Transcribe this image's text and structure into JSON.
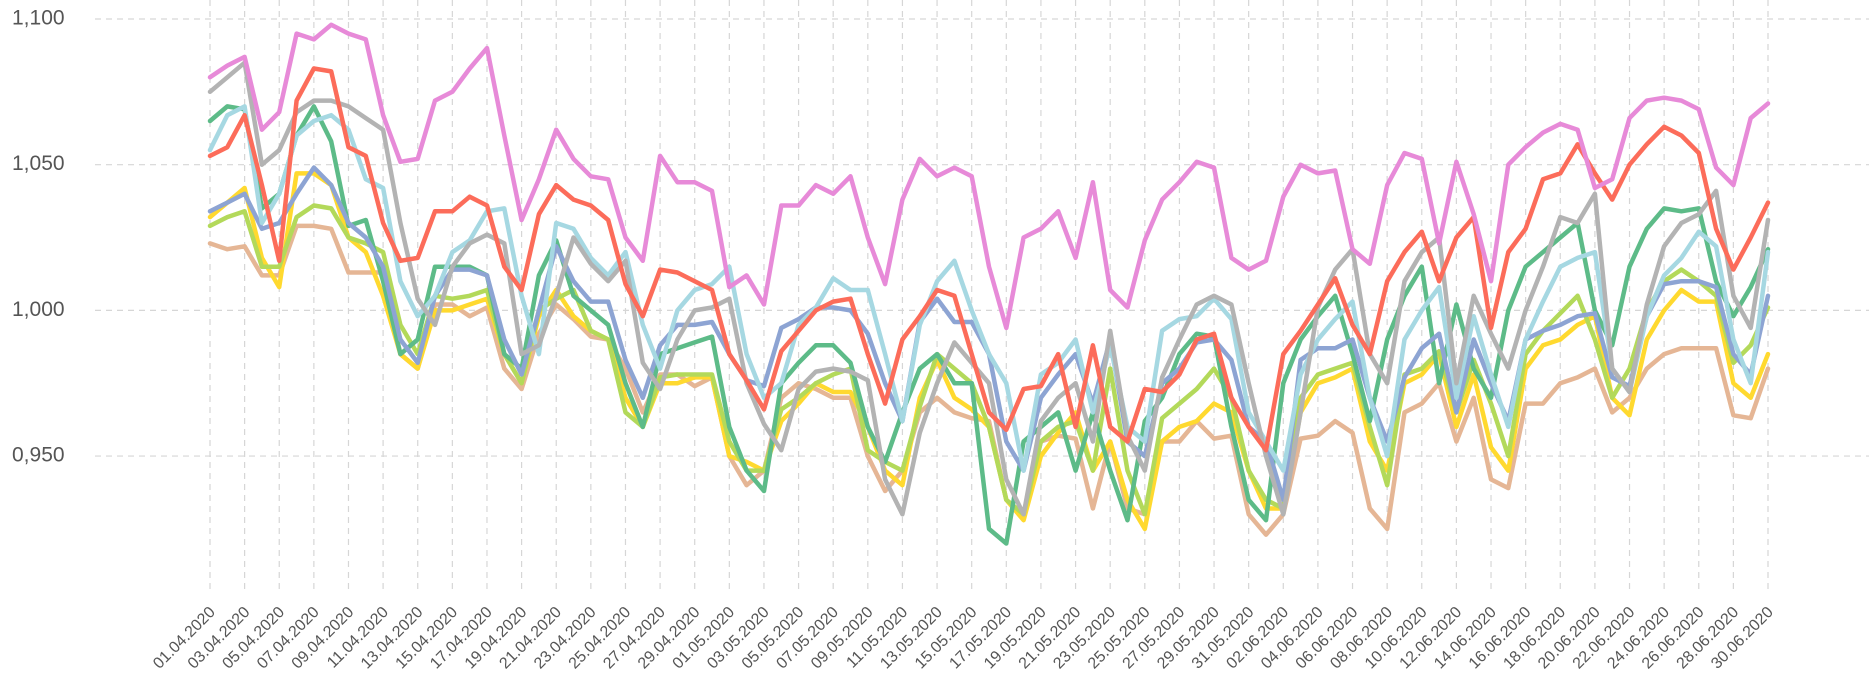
{
  "chart_data": {
    "type": "line",
    "categories": [
      "01.04.2020",
      null,
      "03.04.2020",
      null,
      "05.04.2020",
      null,
      "07.04.2020",
      null,
      "09.04.2020",
      null,
      "11.04.2020",
      null,
      "13.04.2020",
      null,
      "15.04.2020",
      null,
      "17.04.2020",
      null,
      "19.04.2020",
      null,
      "21.04.2020",
      null,
      "23.04.2020",
      null,
      "25.04.2020",
      null,
      "27.04.2020",
      null,
      "29.04.2020",
      null,
      "01.05.2020",
      null,
      "03.05.2020",
      null,
      "05.05.2020",
      null,
      "07.05.2020",
      null,
      "09.05.2020",
      null,
      "11.05.2020",
      null,
      "13.05.2020",
      null,
      "15.05.2020",
      null,
      "17.05.2020",
      null,
      "19.05.2020",
      null,
      "21.05.2020",
      null,
      "23.05.2020",
      null,
      "25.05.2020",
      null,
      "27.05.2020",
      null,
      "29.05.2020",
      null,
      "31.05.2020",
      null,
      "02.06.2020",
      null,
      "04.06.2020",
      null,
      "06.06.2020",
      null,
      "08.06.2020",
      null,
      "10.06.2020",
      null,
      "12.06.2020",
      null,
      "14.06.2020",
      null,
      "16.06.2020",
      null,
      "18.06.2020",
      null,
      "20.06.2020",
      null,
      "22.06.2020",
      null,
      "24.06.2020",
      null,
      "26.06.2020",
      null,
      "28.06.2020",
      null,
      "30.06.2020"
    ],
    "series": [
      {
        "color": "#e5b695",
        "values": [
          1.023,
          1.021,
          1.022,
          1.012,
          1.012,
          1.029,
          1.029,
          1.028,
          1.013,
          1.013,
          1.013,
          0.985,
          0.98,
          1.002,
          1.002,
          0.998,
          1.001,
          0.98,
          0.973,
          0.992,
          1.002,
          0.997,
          0.991,
          0.99,
          0.98,
          0.965,
          0.978,
          0.978,
          0.974,
          0.977,
          0.95,
          0.94,
          0.945,
          0.97,
          0.975,
          0.973,
          0.97,
          0.97,
          0.95,
          0.938,
          0.945,
          0.965,
          0.97,
          0.965,
          0.963,
          0.962,
          0.935,
          0.93,
          0.955,
          0.957,
          0.956,
          0.932,
          0.955,
          0.932,
          0.93,
          0.955,
          0.955,
          0.962,
          0.956,
          0.957,
          0.93,
          0.923,
          0.93,
          0.956,
          0.957,
          0.962,
          0.958,
          0.932,
          0.925,
          0.965,
          0.968,
          0.975,
          0.955,
          0.97,
          0.942,
          0.939,
          0.968,
          0.968,
          0.975,
          0.977,
          0.98,
          0.965,
          0.97,
          0.98,
          0.985,
          0.987,
          0.987,
          0.987,
          0.964,
          0.963,
          0.98
        ]
      },
      {
        "color": "#ffd92f",
        "values": [
          1.032,
          1.037,
          1.042,
          1.018,
          1.008,
          1.047,
          1.047,
          1.043,
          1.025,
          1.02,
          1.005,
          0.985,
          0.98,
          1.0,
          1.0,
          1.002,
          1.004,
          0.985,
          0.975,
          0.998,
          1.007,
          0.998,
          0.993,
          0.99,
          0.97,
          0.96,
          0.975,
          0.975,
          0.977,
          0.977,
          0.95,
          0.948,
          0.945,
          0.962,
          0.968,
          0.975,
          0.972,
          0.972,
          0.96,
          0.945,
          0.94,
          0.97,
          0.983,
          0.97,
          0.966,
          0.96,
          0.935,
          0.928,
          0.95,
          0.958,
          0.965,
          0.945,
          0.955,
          0.935,
          0.925,
          0.955,
          0.96,
          0.962,
          0.968,
          0.965,
          0.945,
          0.932,
          0.932,
          0.965,
          0.975,
          0.977,
          0.98,
          0.955,
          0.945,
          0.975,
          0.978,
          0.985,
          0.96,
          0.978,
          0.953,
          0.945,
          0.98,
          0.988,
          0.99,
          0.995,
          0.998,
          0.97,
          0.964,
          0.99,
          1.0,
          1.007,
          1.003,
          1.003,
          0.975,
          0.97,
          0.985
        ]
      },
      {
        "color": "#b3d95a",
        "values": [
          1.029,
          1.032,
          1.034,
          1.015,
          1.015,
          1.032,
          1.036,
          1.035,
          1.025,
          1.023,
          1.02,
          0.995,
          0.985,
          1.005,
          1.004,
          1.005,
          1.007,
          0.985,
          0.975,
          1.0,
          1.004,
          1.007,
          0.993,
          0.99,
          0.965,
          0.96,
          0.977,
          0.978,
          0.978,
          0.978,
          0.955,
          0.945,
          0.945,
          0.966,
          0.97,
          0.975,
          0.978,
          0.98,
          0.952,
          0.948,
          0.945,
          0.967,
          0.985,
          0.98,
          0.975,
          0.96,
          0.935,
          0.93,
          0.955,
          0.96,
          0.962,
          0.945,
          0.98,
          0.945,
          0.93,
          0.963,
          0.968,
          0.973,
          0.98,
          0.97,
          0.945,
          0.935,
          0.932,
          0.97,
          0.978,
          0.98,
          0.982,
          0.96,
          0.94,
          0.978,
          0.98,
          0.986,
          0.965,
          0.983,
          0.968,
          0.95,
          0.985,
          0.993,
          0.999,
          1.005,
          0.99,
          0.97,
          0.98,
          1.0,
          1.01,
          1.014,
          1.01,
          1.005,
          0.982,
          0.988,
          1.001
        ]
      },
      {
        "color": "#5dbb88",
        "values": [
          1.065,
          1.07,
          1.069,
          1.035,
          1.04,
          1.06,
          1.07,
          1.058,
          1.029,
          1.031,
          1.01,
          0.985,
          0.99,
          1.015,
          1.015,
          1.015,
          1.012,
          0.985,
          0.98,
          1.012,
          1.024,
          1.005,
          1.0,
          0.995,
          0.975,
          0.96,
          0.985,
          0.987,
          0.989,
          0.991,
          0.96,
          0.945,
          0.938,
          0.975,
          0.982,
          0.988,
          0.988,
          0.982,
          0.96,
          0.948,
          0.965,
          0.98,
          0.985,
          0.975,
          0.975,
          0.925,
          0.92,
          0.955,
          0.96,
          0.965,
          0.945,
          0.965,
          0.945,
          0.928,
          0.962,
          0.97,
          0.985,
          0.992,
          0.991,
          0.96,
          0.935,
          0.928,
          0.975,
          0.99,
          0.998,
          1.005,
          0.985,
          0.962,
          0.99,
          1.005,
          1.015,
          0.975,
          1.002,
          0.98,
          0.97,
          1.0,
          1.015,
          1.02,
          1.025,
          1.03,
          1.0,
          0.988,
          1.015,
          1.028,
          1.035,
          1.034,
          1.035,
          1.01,
          0.998,
          1.008,
          1.021
        ]
      },
      {
        "color": "#8da4d3",
        "values": [
          1.034,
          1.037,
          1.04,
          1.028,
          1.03,
          1.04,
          1.049,
          1.043,
          1.03,
          1.025,
          1.015,
          0.99,
          0.982,
          1.005,
          1.014,
          1.014,
          1.012,
          0.99,
          0.978,
          1.0,
          1.022,
          1.01,
          1.003,
          1.003,
          0.983,
          0.97,
          0.988,
          0.995,
          0.995,
          0.996,
          0.985,
          0.976,
          0.974,
          0.994,
          0.997,
          1.001,
          1.001,
          1.0,
          0.992,
          0.975,
          0.962,
          0.996,
          1.004,
          0.996,
          0.996,
          0.985,
          0.955,
          0.945,
          0.97,
          0.978,
          0.985,
          0.968,
          0.99,
          0.955,
          0.95,
          0.975,
          0.98,
          0.989,
          0.99,
          0.983,
          0.96,
          0.955,
          0.935,
          0.983,
          0.987,
          0.987,
          0.99,
          0.97,
          0.955,
          0.977,
          0.987,
          0.992,
          0.965,
          0.99,
          0.975,
          0.962,
          0.99,
          0.993,
          0.995,
          0.998,
          0.999,
          0.977,
          0.974,
          0.998,
          1.009,
          1.01,
          1.01,
          1.008,
          0.985,
          0.978,
          1.005
        ]
      },
      {
        "color": "#a6d8e2",
        "values": [
          1.055,
          1.067,
          1.07,
          1.03,
          1.04,
          1.06,
          1.065,
          1.067,
          1.062,
          1.045,
          1.042,
          1.01,
          0.998,
          1.005,
          1.02,
          1.024,
          1.034,
          1.035,
          1.005,
          0.985,
          1.03,
          1.028,
          1.018,
          1.012,
          1.02,
          0.995,
          0.98,
          1.0,
          1.007,
          1.009,
          1.015,
          0.985,
          0.97,
          0.975,
          0.995,
          1.001,
          1.011,
          1.007,
          1.007,
          0.985,
          0.962,
          0.995,
          1.01,
          1.017,
          1.0,
          0.985,
          0.975,
          0.945,
          0.978,
          0.982,
          0.99,
          0.965,
          0.988,
          0.96,
          0.955,
          0.993,
          0.997,
          0.998,
          1.004,
          0.997,
          0.965,
          0.955,
          0.945,
          0.978,
          0.99,
          0.997,
          1.003,
          0.97,
          0.95,
          0.99,
          1.0,
          1.008,
          0.97,
          0.998,
          0.978,
          0.96,
          0.99,
          1.003,
          1.015,
          1.018,
          1.02,
          0.98,
          0.972,
          0.998,
          1.012,
          1.018,
          1.027,
          1.022,
          0.99,
          0.975,
          1.02
        ]
      },
      {
        "color": "#b3b3b3",
        "values": [
          1.075,
          1.08,
          1.085,
          1.05,
          1.055,
          1.068,
          1.072,
          1.072,
          1.07,
          1.066,
          1.062,
          1.03,
          1.004,
          0.995,
          1.015,
          1.023,
          1.026,
          1.023,
          0.985,
          0.988,
          1.005,
          1.025,
          1.016,
          1.01,
          1.017,
          0.982,
          0.973,
          0.99,
          1.0,
          1.001,
          1.004,
          0.975,
          0.961,
          0.952,
          0.973,
          0.979,
          0.98,
          0.979,
          0.976,
          0.942,
          0.93,
          0.958,
          0.975,
          0.989,
          0.982,
          0.975,
          0.942,
          0.93,
          0.962,
          0.97,
          0.975,
          0.955,
          0.993,
          0.957,
          0.945,
          0.977,
          0.99,
          1.002,
          1.005,
          1.002,
          0.975,
          0.95,
          0.93,
          0.965,
          1.001,
          1.014,
          1.021,
          0.985,
          0.975,
          1.01,
          1.02,
          1.025,
          0.975,
          1.005,
          0.992,
          0.98,
          1.0,
          1.015,
          1.032,
          1.03,
          1.04,
          0.98,
          0.972,
          1.002,
          1.022,
          1.03,
          1.033,
          1.041,
          1.005,
          0.994,
          1.031
        ]
      },
      {
        "color": "#fc6c5a",
        "values": [
          1.053,
          1.056,
          1.067,
          1.043,
          1.017,
          1.072,
          1.083,
          1.082,
          1.056,
          1.053,
          1.03,
          1.017,
          1.018,
          1.034,
          1.034,
          1.039,
          1.036,
          1.015,
          1.007,
          1.033,
          1.043,
          1.038,
          1.036,
          1.031,
          1.009,
          0.998,
          1.014,
          1.013,
          1.01,
          1.007,
          0.985,
          0.976,
          0.966,
          0.986,
          0.993,
          1.0,
          1.003,
          1.004,
          0.985,
          0.968,
          0.99,
          0.998,
          1.007,
          1.005,
          0.985,
          0.965,
          0.959,
          0.973,
          0.974,
          0.985,
          0.96,
          0.988,
          0.96,
          0.955,
          0.973,
          0.972,
          0.978,
          0.99,
          0.992,
          0.97,
          0.96,
          0.952,
          0.985,
          0.993,
          1.002,
          1.011,
          0.995,
          0.985,
          1.01,
          1.02,
          1.027,
          1.01,
          1.025,
          1.032,
          0.994,
          1.02,
          1.028,
          1.045,
          1.047,
          1.057,
          1.047,
          1.038,
          1.05,
          1.057,
          1.063,
          1.06,
          1.054,
          1.028,
          1.014,
          1.025,
          1.037
        ]
      },
      {
        "color": "#e78ad8",
        "values": [
          1.08,
          1.084,
          1.087,
          1.062,
          1.068,
          1.095,
          1.093,
          1.098,
          1.095,
          1.093,
          1.067,
          1.051,
          1.052,
          1.072,
          1.075,
          1.083,
          1.09,
          1.06,
          1.031,
          1.045,
          1.062,
          1.052,
          1.046,
          1.045,
          1.025,
          1.017,
          1.053,
          1.044,
          1.044,
          1.041,
          1.008,
          1.012,
          1.002,
          1.036,
          1.036,
          1.043,
          1.04,
          1.046,
          1.025,
          1.009,
          1.038,
          1.052,
          1.046,
          1.049,
          1.046,
          1.015,
          0.994,
          1.025,
          1.028,
          1.034,
          1.018,
          1.044,
          1.007,
          1.001,
          1.024,
          1.038,
          1.044,
          1.051,
          1.049,
          1.018,
          1.014,
          1.017,
          1.039,
          1.05,
          1.047,
          1.048,
          1.021,
          1.016,
          1.043,
          1.054,
          1.052,
          1.023,
          1.051,
          1.033,
          1.01,
          1.05,
          1.056,
          1.061,
          1.064,
          1.062,
          1.042,
          1.045,
          1.066,
          1.072,
          1.073,
          1.072,
          1.069,
          1.049,
          1.043,
          1.066,
          1.071
        ]
      }
    ],
    "ylim": [
      0.903,
      1.1
    ],
    "yticks": [
      {
        "value": 1.1,
        "label": "1,100"
      },
      {
        "value": 1.05,
        "label": "1,050"
      },
      {
        "value": 1,
        "label": "1,000"
      },
      {
        "value": 0.95,
        "label": "0,950"
      }
    ],
    "grid": true
  }
}
